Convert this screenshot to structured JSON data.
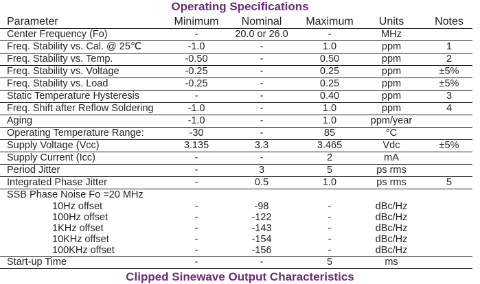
{
  "title": "Operating Specifications",
  "next_title": "Clipped Sinewave Output Characteristics",
  "headers": [
    "Parameter",
    "Minimum",
    "Nominal",
    "Maximum",
    "Units",
    "Notes"
  ],
  "rows": [
    [
      "Center Frequency (Fo)",
      "-",
      "20.0 or 26.0",
      "-",
      "MHz",
      ""
    ],
    [
      "Freq. Stability vs. Cal. @ 25℃",
      "-1.0",
      "-",
      "1.0",
      "ppm",
      "1"
    ],
    [
      "Freq. Stability vs. Temp.",
      "-0.50",
      "-",
      "0.50",
      "ppm",
      "2"
    ],
    [
      "Freq. Stability vs. Voltage",
      "-0.25",
      "-",
      "0.25",
      "ppm",
      "±5%"
    ],
    [
      "Freq. Stability vs. Load",
      "-0.25",
      "-",
      "0.25",
      "ppm",
      "±5%"
    ],
    [
      "Static Temperature Hysteresis",
      "-",
      "-",
      "0.40",
      "ppm",
      "3"
    ],
    [
      "Freq. Shift after Reflow Soldering",
      "-1.0",
      "-",
      "1.0",
      "ppm",
      "4"
    ],
    [
      "Aging",
      "-1.0",
      "-",
      "1.0",
      "ppm/year",
      ""
    ],
    [
      "Operating Temperature Range:",
      "-30",
      "-",
      "85",
      "°C",
      ""
    ],
    [
      "Supply Voltage (Vcc)",
      "3.135",
      "3.3",
      "3.465",
      "Vdc",
      "±5%"
    ],
    [
      "Supply Current (Icc)",
      "-",
      "-",
      "2",
      "mA",
      ""
    ],
    [
      "Period Jitter",
      "-",
      "3",
      "5",
      "ps rms",
      ""
    ],
    [
      "Integrated Phase Jitter",
      "-",
      "0.5",
      "1.0",
      "ps rms",
      "5"
    ]
  ],
  "phase_noise": {
    "label": "SSB Phase Noise Fo =20 MHz",
    "rows": [
      [
        "10Hz offset",
        "-",
        "-98",
        "-",
        "dBc/Hz",
        ""
      ],
      [
        "100Hz offset",
        "-",
        "-122",
        "-",
        "dBc/Hz",
        ""
      ],
      [
        "1KHz offset",
        "-",
        "-143",
        "-",
        "dBc/Hz",
        ""
      ],
      [
        "10KHz offset",
        "-",
        "-154",
        "-",
        "dBc/Hz",
        ""
      ],
      [
        "100KHz offset",
        "-",
        "-156",
        "-",
        "dBc/Hz",
        ""
      ]
    ]
  },
  "startup": [
    "Start-up Time",
    "-",
    "-",
    "5",
    "ms",
    ""
  ]
}
